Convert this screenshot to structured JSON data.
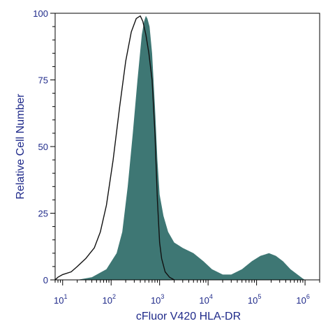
{
  "chart_data": {
    "type": "area",
    "xlabel": "cFluor V420 HLA-DR",
    "ylabel": "Relative Cell Number",
    "xscale": "log",
    "xlim": [
      7,
      2000000
    ],
    "ylim": [
      0,
      100
    ],
    "yticks": [
      {
        "value": 0,
        "label": "0"
      },
      {
        "value": 25,
        "label": "25"
      },
      {
        "value": 50,
        "label": "50"
      },
      {
        "value": 75,
        "label": "75"
      },
      {
        "value": 100,
        "label": "100"
      }
    ],
    "xticks": [
      {
        "value": 10,
        "base": "10",
        "exp": "1"
      },
      {
        "value": 100,
        "base": "10",
        "exp": "2"
      },
      {
        "value": 1000,
        "base": "10",
        "exp": "3"
      },
      {
        "value": 10000,
        "base": "10",
        "exp": "4"
      },
      {
        "value": 100000,
        "base": "10",
        "exp": "5"
      },
      {
        "value": 1000000,
        "base": "10",
        "exp": "6"
      }
    ],
    "grid": false,
    "legend": "none",
    "series": [
      {
        "style": "filled",
        "color": "#3e7774",
        "points": [
          [
            20,
            0
          ],
          [
            40,
            1
          ],
          [
            80,
            4
          ],
          [
            130,
            10
          ],
          [
            170,
            18
          ],
          [
            220,
            35
          ],
          [
            280,
            55
          ],
          [
            350,
            75
          ],
          [
            430,
            92
          ],
          [
            480,
            97
          ],
          [
            520,
            99
          ],
          [
            560,
            98
          ],
          [
            620,
            95
          ],
          [
            700,
            85
          ],
          [
            800,
            65
          ],
          [
            900,
            45
          ],
          [
            1000,
            32
          ],
          [
            1200,
            24
          ],
          [
            1500,
            18
          ],
          [
            2000,
            14
          ],
          [
            3000,
            12
          ],
          [
            5000,
            10
          ],
          [
            8000,
            7
          ],
          [
            12000,
            4
          ],
          [
            20000,
            2
          ],
          [
            30000,
            2
          ],
          [
            50000,
            4
          ],
          [
            80000,
            7
          ],
          [
            120000,
            9
          ],
          [
            180000,
            10
          ],
          [
            250000,
            9
          ],
          [
            350000,
            7
          ],
          [
            500000,
            4
          ],
          [
            700000,
            2
          ],
          [
            900000,
            0.5
          ],
          [
            1000000,
            0
          ]
        ]
      },
      {
        "style": "outline",
        "color": "#111111",
        "points": [
          [
            7,
            0
          ],
          [
            8,
            1
          ],
          [
            10,
            2
          ],
          [
            15,
            3
          ],
          [
            20,
            5
          ],
          [
            30,
            8
          ],
          [
            45,
            12
          ],
          [
            60,
            18
          ],
          [
            80,
            28
          ],
          [
            110,
            45
          ],
          [
            150,
            65
          ],
          [
            200,
            82
          ],
          [
            260,
            93
          ],
          [
            330,
            98
          ],
          [
            400,
            99
          ],
          [
            450,
            97
          ],
          [
            520,
            92
          ],
          [
            600,
            85
          ],
          [
            700,
            75
          ],
          [
            800,
            55
          ],
          [
            900,
            30
          ],
          [
            1000,
            14
          ],
          [
            1100,
            8
          ],
          [
            1300,
            3
          ],
          [
            1600,
            1
          ],
          [
            2000,
            0
          ]
        ]
      }
    ]
  }
}
